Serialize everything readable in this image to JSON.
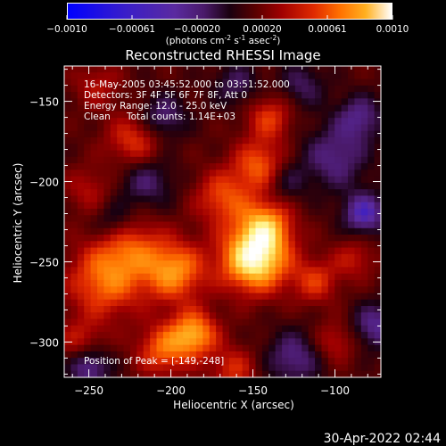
{
  "colorbar": {
    "ticks": [
      "-0.0010",
      "-0.00061",
      "-0.00020",
      "0.00020",
      "0.00061",
      "0.0010"
    ],
    "unit_parts": [
      "(photons cm",
      "-2",
      " s",
      "-1",
      " asec",
      "-2",
      ")"
    ]
  },
  "footer_timestamp": "30-Apr-2022 02:44",
  "chart_data": {
    "type": "heatmap",
    "title": "Reconstructed RHESSI Image",
    "xlabel": "Heliocentric X (arcsec)",
    "ylabel": "Heliocentric Y (arcsec)",
    "xlim": [
      -265,
      -72
    ],
    "ylim": [
      -322,
      -128
    ],
    "x_ticks": [
      -250,
      -200,
      -150,
      -100
    ],
    "y_ticks": [
      -150,
      -200,
      -250,
      -300
    ],
    "x_tick_labels": [
      "−250",
      "−200",
      "−150",
      "−100"
    ],
    "y_tick_labels": [
      "−150",
      "−200",
      "−250",
      "−300"
    ],
    "color_range": [
      -0.001,
      0.001
    ],
    "colormap": [
      "#0000ff",
      "#3a1ec8",
      "#5a2aa0",
      "#4a1a6a",
      "#1a0010",
      "#5a0000",
      "#a00000",
      "#e02a00",
      "#ff7000",
      "#ffb020",
      "#fff080",
      "#ffffff"
    ],
    "annotations": {
      "time_range": "16-May-2005 03:45:52.000 to 03:51:52.000",
      "detectors": "Detectors: 3F 4F 5F 6F 7F 8F, Att 0",
      "energy": "Energy Range: 12.0 - 25.0 keV",
      "method": "Clean",
      "counts": "Total counts: 1.14E+03",
      "peak": "Position of Peak = [-149,-248]"
    },
    "peak": [
      -149,
      -248
    ],
    "sources": [
      {
        "x": -149,
        "y": -248,
        "amp": 0.00105,
        "sigma": 14
      },
      {
        "x": -142,
        "y": -227,
        "amp": 0.0006,
        "sigma": 11
      },
      {
        "x": -146,
        "y": -190,
        "amp": 0.0005,
        "sigma": 11
      },
      {
        "x": -198,
        "y": -256,
        "amp": 0.00065,
        "sigma": 13
      },
      {
        "x": -240,
        "y": -262,
        "amp": 0.00055,
        "sigma": 16
      },
      {
        "x": -225,
        "y": -240,
        "amp": 0.0004,
        "sigma": 14
      },
      {
        "x": -186,
        "y": -295,
        "amp": 0.0007,
        "sigma": 10
      },
      {
        "x": -205,
        "y": -305,
        "amp": 0.0005,
        "sigma": 11
      },
      {
        "x": -222,
        "y": -175,
        "amp": 0.00042,
        "sigma": 12
      },
      {
        "x": -168,
        "y": -210,
        "amp": 0.00045,
        "sigma": 12
      },
      {
        "x": -140,
        "y": -160,
        "amp": 0.0004,
        "sigma": 10
      },
      {
        "x": -112,
        "y": -262,
        "amp": 0.00038,
        "sigma": 10
      },
      {
        "x": -88,
        "y": -248,
        "amp": 0.00028,
        "sigma": 9
      },
      {
        "x": -255,
        "y": -300,
        "amp": 0.0003,
        "sigma": 10
      },
      {
        "x": -162,
        "y": -317,
        "amp": 0.00035,
        "sigma": 10
      },
      {
        "x": -250,
        "y": -205,
        "amp": 0.00025,
        "sigma": 10
      },
      {
        "x": -100,
        "y": -300,
        "amp": 0.0003,
        "sigma": 9
      },
      {
        "x": -245,
        "y": -140,
        "amp": 0.00025,
        "sigma": 10
      },
      {
        "x": -120,
        "y": -140,
        "amp": -0.0003,
        "sigma": 10
      },
      {
        "x": -100,
        "y": -185,
        "amp": -0.0004,
        "sigma": 14
      },
      {
        "x": -82,
        "y": -220,
        "amp": -0.0006,
        "sigma": 9
      },
      {
        "x": -85,
        "y": -160,
        "amp": -0.0004,
        "sigma": 10
      },
      {
        "x": -75,
        "y": -290,
        "amp": -0.00045,
        "sigma": 10
      },
      {
        "x": -215,
        "y": -200,
        "amp": -0.00035,
        "sigma": 12
      },
      {
        "x": -250,
        "y": -315,
        "amp": -0.0005,
        "sigma": 9
      },
      {
        "x": -205,
        "y": -160,
        "amp": -0.0004,
        "sigma": 10
      },
      {
        "x": -125,
        "y": -310,
        "amp": -0.0004,
        "sigma": 12
      },
      {
        "x": -160,
        "y": -140,
        "amp": -0.0003,
        "sigma": 10
      },
      {
        "x": -235,
        "y": -225,
        "amp": -0.0003,
        "sigma": 9
      },
      {
        "x": -130,
        "y": -200,
        "amp": -0.00025,
        "sigma": 9
      }
    ]
  }
}
